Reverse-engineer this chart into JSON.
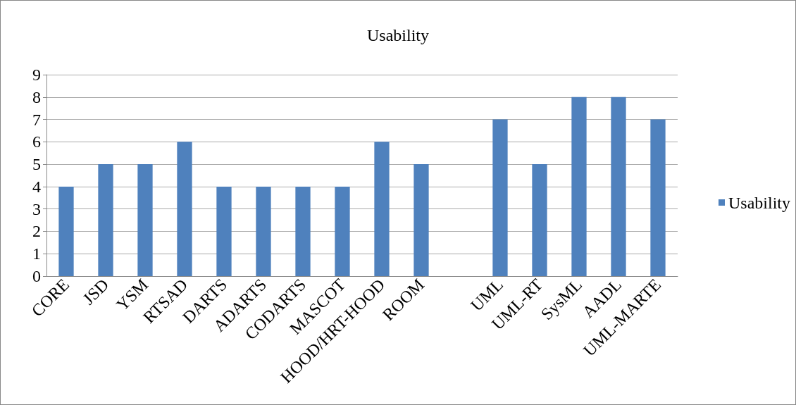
{
  "chart_data": {
    "type": "bar",
    "title": "Usability",
    "categories": [
      "CORE",
      "JSD",
      "YSM",
      "RTSAD",
      "DARTS",
      "ADARTS",
      "CODARTS",
      "MASCOT",
      "HOOD/HRT-HOOD",
      "ROOM",
      null,
      "UML",
      "UML-RT",
      "SysML",
      "AADL",
      "UML-MARTE"
    ],
    "series": [
      {
        "name": "Usability",
        "color": "#4f81bd",
        "values": [
          4,
          5,
          5,
          6,
          4,
          4,
          4,
          4,
          6,
          5,
          null,
          7,
          5,
          8,
          8,
          7
        ]
      }
    ],
    "ylim": [
      0,
      9
    ],
    "yticks": [
      0,
      1,
      2,
      3,
      4,
      5,
      6,
      7,
      8,
      9
    ],
    "grid": "y",
    "legend": "right"
  }
}
